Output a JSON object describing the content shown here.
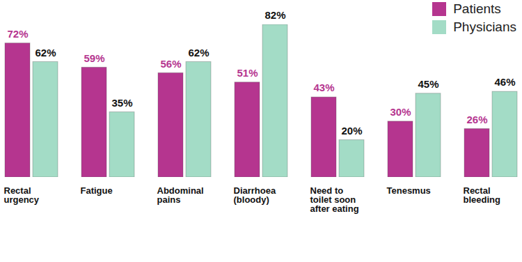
{
  "chart_data": {
    "type": "bar",
    "categories": [
      "Rectal\nurgency",
      "Fatigue",
      "Abdominal\npains",
      "Diarrhoea\n(bloody)",
      "Need to\ntoilet soon\nafter eating",
      "Tenesmus",
      "Rectal\nbleeding"
    ],
    "series": [
      {
        "name": "Patients",
        "color": "#b5358f",
        "values": [
          72,
          59,
          56,
          51,
          43,
          30,
          26
        ],
        "value_labels": [
          "72%",
          "59%",
          "56%",
          "51%",
          "43%",
          "30%",
          "26%"
        ]
      },
      {
        "name": "Physicians",
        "color": "#a3dcc6",
        "values": [
          62,
          35,
          62,
          82,
          20,
          45,
          46
        ],
        "value_labels": [
          "62%",
          "35%",
          "62%",
          "82%",
          "20%",
          "45%",
          "46%"
        ]
      }
    ],
    "ylim": [
      0,
      82
    ],
    "data_labels": true,
    "tick_labels": "x",
    "legend": "top-right"
  }
}
